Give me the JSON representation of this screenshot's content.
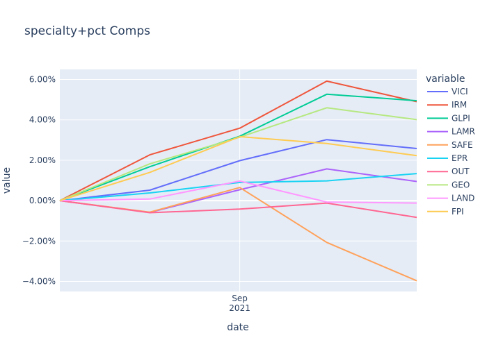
{
  "chart_data": {
    "type": "line",
    "title": "specialty+pct Comps",
    "xlabel": "date",
    "ylabel": "value",
    "legend_title": "variable",
    "legend_position": "right",
    "grid": true,
    "x": [
      "2021-07-01",
      "2021-08-01",
      "2021-09-01",
      "2021-10-01",
      "2021-11-01"
    ],
    "x_ticks": [
      {
        "value": "2021-09-01",
        "label_line1": "Sep",
        "label_line2": "2021"
      }
    ],
    "xlim": [
      "2021-07-01",
      "2021-11-01"
    ],
    "ylim": [
      -0.045,
      0.065
    ],
    "y_ticks": [
      {
        "value": -0.04,
        "label": "−4.00%"
      },
      {
        "value": -0.02,
        "label": "−2.00%"
      },
      {
        "value": 0.0,
        "label": "0.00%"
      },
      {
        "value": 0.02,
        "label": "2.00%"
      },
      {
        "value": 0.04,
        "label": "4.00%"
      },
      {
        "value": 0.06,
        "label": "6.00%"
      }
    ],
    "series": [
      {
        "name": "VICI",
        "color": "#636efa",
        "values": [
          0.0,
          0.0052,
          0.0198,
          0.0302,
          0.0258
        ]
      },
      {
        "name": "IRM",
        "color": "#EF553B",
        "values": [
          0.0,
          0.0227,
          0.0359,
          0.0592,
          0.049
        ]
      },
      {
        "name": "GLPI",
        "color": "#00cc96",
        "values": [
          0.0,
          0.0168,
          0.0319,
          0.0527,
          0.0495
        ]
      },
      {
        "name": "LAMR",
        "color": "#ab63fa",
        "values": [
          0.0,
          -0.0058,
          0.0054,
          0.0157,
          0.0095
        ]
      },
      {
        "name": "SAFE",
        "color": "#FFA15A",
        "values": [
          0.0,
          -0.0057,
          0.0065,
          -0.0207,
          -0.0397
        ]
      },
      {
        "name": "EPR",
        "color": "#19d3f3",
        "values": [
          0.0,
          0.0038,
          0.009,
          0.0098,
          0.0134
        ]
      },
      {
        "name": "OUT",
        "color": "#FF6692",
        "values": [
          0.0,
          -0.006,
          -0.0042,
          -0.0012,
          -0.0083
        ]
      },
      {
        "name": "GEO",
        "color": "#B6E880",
        "values": [
          0.0,
          0.0182,
          0.0314,
          0.046,
          0.0401
        ]
      },
      {
        "name": "LAND",
        "color": "#FF97FF",
        "values": [
          0.0,
          0.0008,
          0.0097,
          -0.0007,
          -0.0012
        ]
      },
      {
        "name": "FPI",
        "color": "#FECB52",
        "values": [
          0.0,
          0.014,
          0.0317,
          0.0283,
          0.0223
        ]
      }
    ]
  }
}
